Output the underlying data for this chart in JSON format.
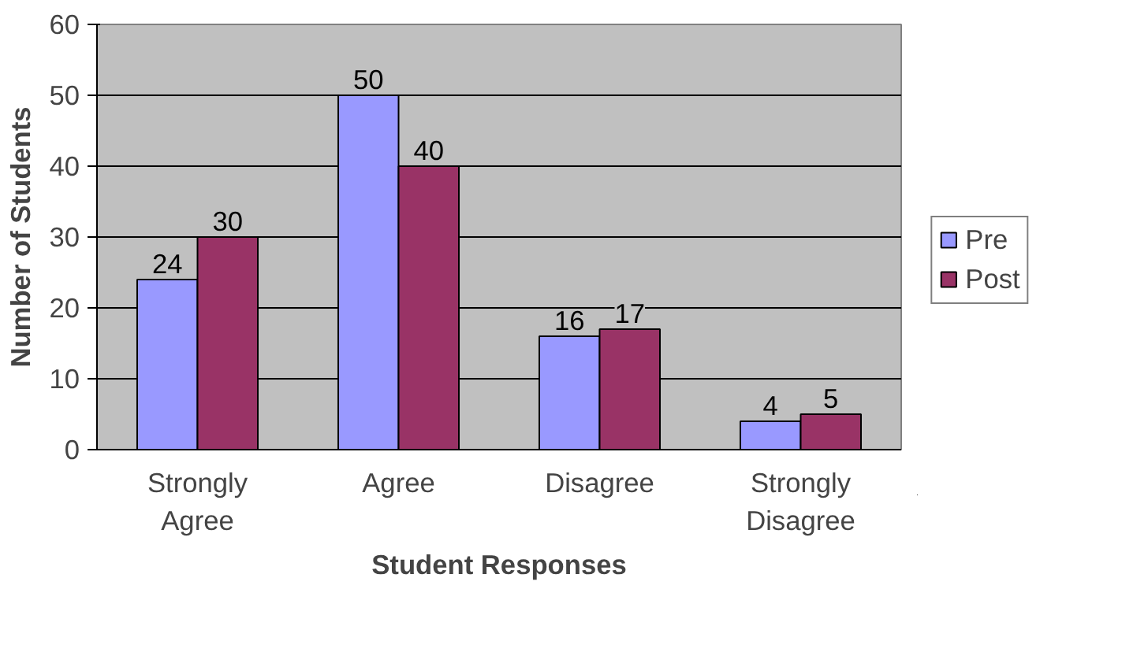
{
  "chart_data": {
    "type": "bar",
    "xlabel": "Student Responses",
    "ylabel": "Number of Students",
    "categories": [
      "Strongly Agree",
      "Agree",
      "Disagree",
      "Strongly Disagree"
    ],
    "series": [
      {
        "name": "Pre",
        "color": "#9999ff",
        "values": [
          24,
          50,
          16,
          4
        ]
      },
      {
        "name": "Post",
        "color": "#993366",
        "values": [
          30,
          40,
          17,
          5
        ]
      }
    ],
    "ylim": [
      0,
      60
    ],
    "yticks": [
      0,
      10,
      20,
      30,
      40,
      50,
      60
    ],
    "grid": "y",
    "legend": "right",
    "data_labels": true
  }
}
